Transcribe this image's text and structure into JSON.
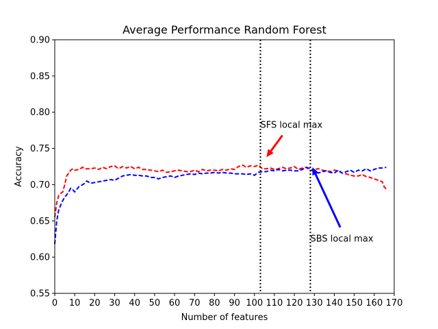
{
  "chart_data": {
    "type": "line",
    "title": "Average Performance Random Forest",
    "xlabel": "Number of features",
    "ylabel": "Accuracy",
    "xlim": [
      0,
      170
    ],
    "ylim": [
      0.55,
      0.9
    ],
    "xticks": [
      "0",
      "10",
      "20",
      "30",
      "40",
      "50",
      "60",
      "70",
      "80",
      "90",
      "100",
      "110",
      "120",
      "130",
      "140",
      "150",
      "160",
      "170"
    ],
    "yticks": [
      "0.55",
      "0.60",
      "0.65",
      "0.70",
      "0.75",
      "0.80",
      "0.85",
      "0.90"
    ],
    "grid": false,
    "series": [
      {
        "color": "#ff0000",
        "style": "dashed",
        "x": [
          0,
          1,
          2,
          3,
          4,
          5,
          6,
          7,
          8,
          9,
          10,
          12,
          14,
          15,
          16,
          18,
          20,
          22,
          24,
          26,
          28,
          30,
          32,
          34,
          36,
          38,
          40,
          42,
          44,
          46,
          48,
          50,
          52,
          54,
          56,
          58,
          60,
          62,
          64,
          66,
          68,
          70,
          72,
          74,
          76,
          78,
          80,
          82,
          84,
          86,
          88,
          90,
          92,
          94,
          96,
          98,
          100,
          102,
          104,
          106,
          108,
          110,
          112,
          114,
          116,
          118,
          120,
          122,
          124,
          126,
          128,
          130,
          132,
          134,
          136,
          138,
          140,
          142,
          144,
          146,
          148,
          150,
          152,
          154,
          156,
          158,
          160,
          162,
          164,
          165,
          166
        ],
        "y": [
          0.655,
          0.675,
          0.685,
          0.688,
          0.69,
          0.7,
          0.712,
          0.716,
          0.72,
          0.722,
          0.72,
          0.721,
          0.724,
          0.722,
          0.722,
          0.722,
          0.723,
          0.721,
          0.724,
          0.722,
          0.725,
          0.726,
          0.722,
          0.725,
          0.723,
          0.725,
          0.722,
          0.724,
          0.721,
          0.721,
          0.72,
          0.719,
          0.718,
          0.72,
          0.717,
          0.718,
          0.719,
          0.72,
          0.719,
          0.718,
          0.718,
          0.72,
          0.718,
          0.721,
          0.719,
          0.72,
          0.72,
          0.719,
          0.721,
          0.72,
          0.722,
          0.721,
          0.725,
          0.727,
          0.724,
          0.726,
          0.725,
          0.727,
          0.722,
          0.722,
          0.723,
          0.721,
          0.722,
          0.724,
          0.722,
          0.723,
          0.725,
          0.721,
          0.723,
          0.724,
          0.719,
          0.721,
          0.722,
          0.72,
          0.719,
          0.718,
          0.72,
          0.719,
          0.716,
          0.715,
          0.713,
          0.712,
          0.712,
          0.714,
          0.711,
          0.71,
          0.708,
          0.706,
          0.704,
          0.697,
          0.694
        ]
      },
      {
        "color": "#0000ff",
        "style": "dashed",
        "x": [
          0,
          1,
          2,
          3,
          4,
          5,
          6,
          7,
          8,
          9,
          10,
          12,
          14,
          15,
          16,
          18,
          20,
          22,
          24,
          26,
          28,
          30,
          32,
          34,
          36,
          38,
          40,
          42,
          44,
          46,
          48,
          50,
          52,
          54,
          56,
          58,
          60,
          62,
          64,
          66,
          68,
          70,
          72,
          74,
          76,
          78,
          80,
          82,
          84,
          86,
          88,
          90,
          92,
          94,
          96,
          98,
          100,
          102,
          104,
          106,
          108,
          110,
          112,
          114,
          116,
          118,
          120,
          122,
          124,
          126,
          128,
          130,
          132,
          134,
          136,
          138,
          140,
          142,
          144,
          146,
          148,
          150,
          152,
          154,
          156,
          158,
          160,
          162,
          164,
          166
        ],
        "y": [
          0.618,
          0.65,
          0.665,
          0.672,
          0.678,
          0.683,
          0.686,
          0.69,
          0.695,
          0.693,
          0.69,
          0.697,
          0.7,
          0.702,
          0.705,
          0.702,
          0.703,
          0.704,
          0.705,
          0.706,
          0.707,
          0.706,
          0.709,
          0.712,
          0.713,
          0.714,
          0.713,
          0.713,
          0.712,
          0.712,
          0.71,
          0.71,
          0.708,
          0.71,
          0.711,
          0.712,
          0.71,
          0.712,
          0.713,
          0.714,
          0.715,
          0.714,
          0.716,
          0.715,
          0.716,
          0.716,
          0.717,
          0.716,
          0.717,
          0.716,
          0.716,
          0.715,
          0.715,
          0.715,
          0.714,
          0.715,
          0.713,
          0.717,
          0.718,
          0.718,
          0.72,
          0.719,
          0.721,
          0.719,
          0.72,
          0.72,
          0.719,
          0.719,
          0.721,
          0.724,
          0.722,
          0.718,
          0.716,
          0.718,
          0.719,
          0.717,
          0.716,
          0.72,
          0.716,
          0.718,
          0.72,
          0.717,
          0.72,
          0.719,
          0.722,
          0.719,
          0.721,
          0.723,
          0.723,
          0.724
        ]
      }
    ],
    "vlines": [
      103,
      128
    ],
    "annotations": [
      {
        "text": "SFS local max",
        "text_at": [
          103,
          0.782
        ],
        "arrow_from": [
          114,
          0.768
        ],
        "arrow_to": [
          106,
          0.738
        ],
        "color": "#ff0000"
      },
      {
        "text": "SBS local max",
        "text_at": [
          128,
          0.625
        ],
        "arrow_from": [
          143,
          0.641
        ],
        "arrow_to": [
          129,
          0.724
        ],
        "color": "#0000ff"
      }
    ]
  }
}
